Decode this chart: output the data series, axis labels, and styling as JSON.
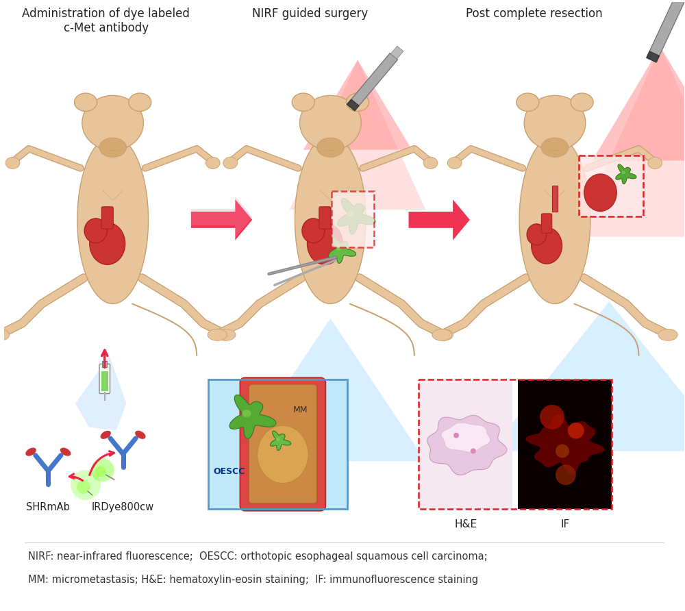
{
  "title1": "Administration of dye labeled\nc-Met antibody",
  "title2": "NIRF guided surgery",
  "title3": "Post complete resection",
  "label_shrm": "SHRmAb",
  "label_irdye": "IRDye800cw",
  "label_he": "H&E",
  "label_if": "IF",
  "label_oescc": "OESCC",
  "label_mm": "MM",
  "footnote1": "NIRF: near-infrared fluorescence;  OESCC: orthotopic esophageal squamous cell carcinoma;",
  "footnote2": "MM: micrometastasis; H&E: hematoxylin-eosin staining;  IF: immunofluorescence staining",
  "bg_color": "#ffffff",
  "mouse_skin": "#e8c49a",
  "mouse_skin_dark": "#d4a870",
  "mouse_outline": "#c8a070",
  "stomach_red": "#cc3333",
  "tumor_green": "#55aa33",
  "text_color": "#222222",
  "footnote_color": "#333333",
  "dashed_red": "#dd2222",
  "probe_gray": "#999999",
  "probe_dark": "#666666",
  "blue_light": "#aaddff",
  "red_light": "#ff8888",
  "fig_width": 10.0,
  "fig_height": 8.92
}
